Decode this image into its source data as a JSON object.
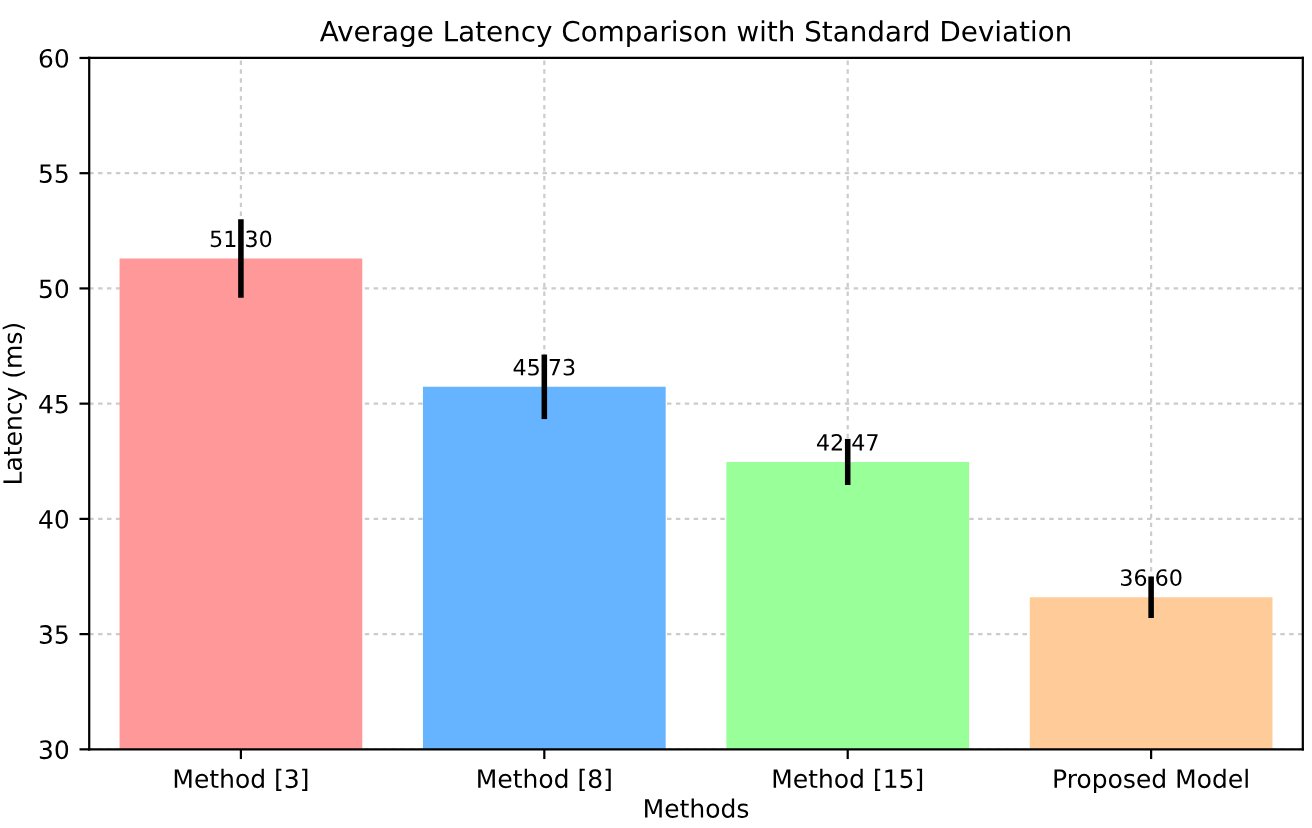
{
  "chart_data": {
    "type": "bar",
    "title": "Average Latency Comparison with Standard Deviation",
    "xlabel": "Methods",
    "ylabel": "Latency (ms)",
    "categories": [
      "Method [3]",
      "Method [8]",
      "Method [15]",
      "Proposed Model"
    ],
    "values": [
      51.3,
      45.73,
      42.47,
      36.6
    ],
    "value_labels": [
      "51.30",
      "45.73",
      "42.47",
      "36.60"
    ],
    "errors": [
      1.7,
      1.4,
      1.0,
      0.9
    ],
    "colors": [
      "#ff9999",
      "#66b3ff",
      "#99ff99",
      "#ffcc99"
    ],
    "ylim": [
      30,
      60
    ],
    "yticks": [
      30,
      35,
      40,
      45,
      50,
      55,
      60
    ],
    "grid": true
  }
}
